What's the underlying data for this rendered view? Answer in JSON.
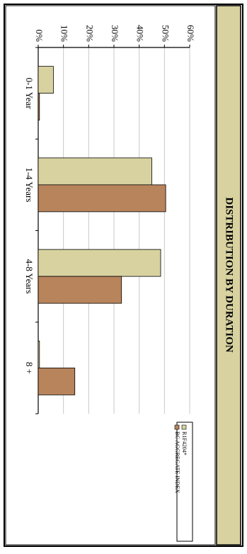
{
  "chart_data": {
    "type": "bar",
    "orientation": "rotated-90-clockwise",
    "title": "DISTRIBUTION BY DURATION",
    "categories": [
      "0-1 Year",
      "1-4 Years",
      "4-8 Years",
      "8 +"
    ],
    "series": [
      {
        "name": "R1F4204*",
        "values": [
          6.0,
          45.0,
          48.5,
          0.5
        ],
        "color": "#d8d2a0"
      },
      {
        "name": "BC AGGREGATE INDEX",
        "values": [
          0.5,
          50.5,
          33.0,
          14.5
        ],
        "color": "#b8845c"
      }
    ],
    "ylim": [
      0,
      60
    ],
    "yticks": [
      "0%",
      "10%",
      "20%",
      "30%",
      "40%",
      "50%",
      "60%"
    ],
    "grid": true,
    "legend": "bottom-right"
  },
  "colors": {
    "title_band": "#d8d2a0",
    "border": "#000000",
    "grid": "#c8c8c8"
  }
}
